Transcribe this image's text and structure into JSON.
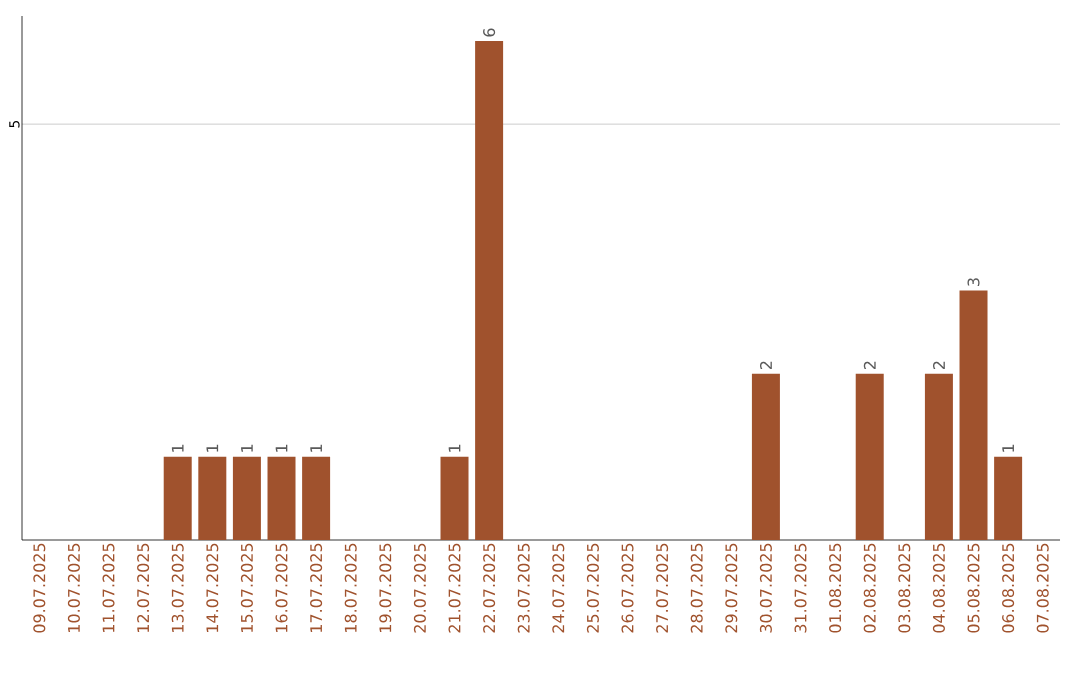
{
  "chart_data": {
    "type": "bar",
    "categories": [
      "09.07.2025",
      "10.07.2025",
      "11.07.2025",
      "12.07.2025",
      "13.07.2025",
      "14.07.2025",
      "15.07.2025",
      "16.07.2025",
      "17.07.2025",
      "18.07.2025",
      "19.07.2025",
      "20.07.2025",
      "21.07.2025",
      "22.07.2025",
      "23.07.2025",
      "24.07.2025",
      "25.07.2025",
      "26.07.2025",
      "27.07.2025",
      "28.07.2025",
      "29.07.2025",
      "30.07.2025",
      "31.07.2025",
      "01.08.2025",
      "02.08.2025",
      "03.08.2025",
      "04.08.2025",
      "05.08.2025",
      "06.08.2025",
      "07.08.2025"
    ],
    "values": [
      0,
      0,
      0,
      0,
      1,
      1,
      1,
      1,
      1,
      0,
      0,
      0,
      1,
      6,
      0,
      0,
      0,
      0,
      0,
      0,
      0,
      2,
      0,
      0,
      2,
      0,
      2,
      3,
      1,
      0
    ],
    "value_labels": [
      null,
      null,
      null,
      null,
      "1",
      "1",
      "1",
      "1",
      "1",
      null,
      null,
      null,
      "1",
      "6",
      null,
      null,
      null,
      null,
      null,
      null,
      null,
      "2",
      null,
      null,
      "2",
      null,
      "2",
      "3",
      "1",
      null
    ],
    "color": "#a0522d",
    "ylim": [
      0,
      6.3
    ],
    "yticks": [
      5
    ],
    "grid": "y"
  }
}
